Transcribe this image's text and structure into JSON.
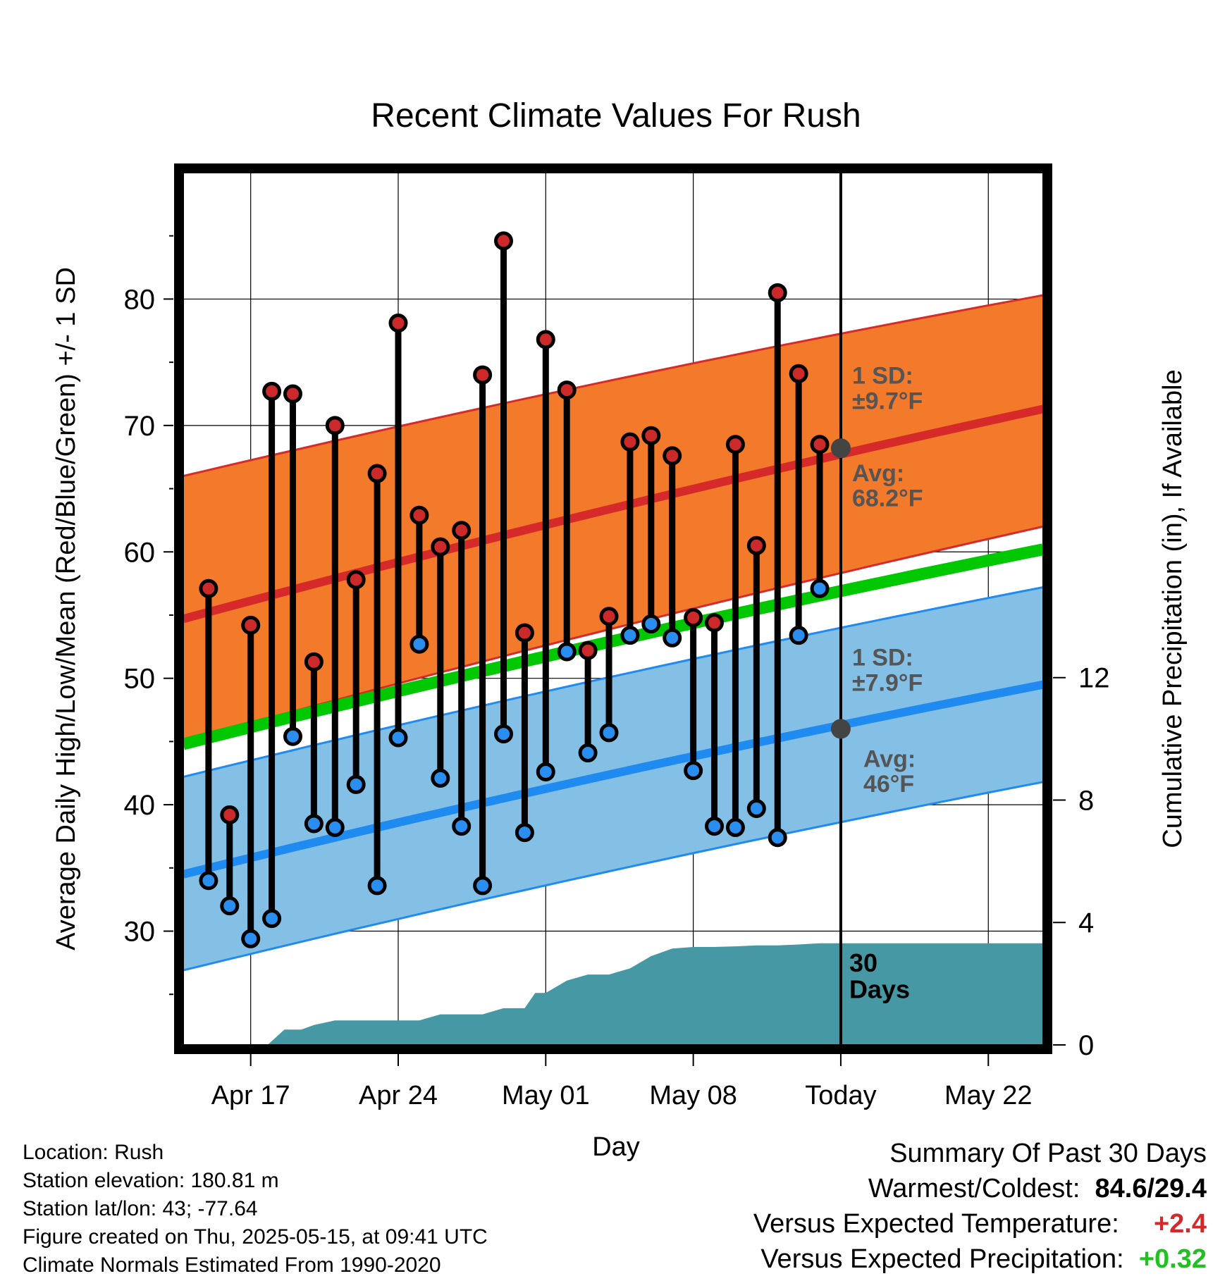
{
  "chart_data": {
    "type": "line",
    "title": "Recent Climate Values For Rush",
    "xlabel": "Day",
    "ylabel": "Average Daily High/Low/Mean (Red/Blue/Green) +/- 1 SD",
    "y2label": "Cumulative Precipitation (in), If Available",
    "x_tick_labels": [
      "Apr 17",
      "Apr 24",
      "May 01",
      "May 08",
      "Today",
      "May 22"
    ],
    "x_tick_days": [
      -28,
      -21,
      -14,
      -7,
      0,
      7
    ],
    "xlim_days": [
      -31.2,
      9.6
    ],
    "ylim": [
      21,
      90
    ],
    "y_ticks": [
      30,
      40,
      50,
      60,
      70,
      80
    ],
    "y2lim": [
      0,
      28.5
    ],
    "y2_ticks": [
      0,
      4,
      8,
      12
    ],
    "grid": true,
    "colors": {
      "high_band": "#f3792b",
      "high_band_edge": "#d42b2b",
      "high_mean": "#d62a2a",
      "low_band": "#84c0e6",
      "low_band_edge": "#1f8bf0",
      "low_mean": "#1f8bf0",
      "mean": "#00c800",
      "precip": "#4698a4",
      "high_point": "#cc2a2a",
      "low_point": "#2a8ef0",
      "avg_marker": "#444444",
      "annotation": "#555555"
    },
    "normals": {
      "days": [
        -31.2,
        9.6
      ],
      "high_mean": [
        54.7,
        71.3
      ],
      "high_sd_upper": [
        66.0,
        80.3
      ],
      "high_sd_lower": [
        45.0,
        62.0
      ],
      "low_mean": [
        34.5,
        49.5
      ],
      "low_sd_upper": [
        42.2,
        57.2
      ],
      "low_sd_lower": [
        26.9,
        41.8
      ],
      "mean_start": 44.8,
      "mean_end": 60.2
    },
    "observed": {
      "days": [
        -30,
        -29,
        -28,
        -27,
        -26,
        -25,
        -24,
        -23,
        -22,
        -21,
        -20,
        -19,
        -18,
        -17,
        -16,
        -15,
        -14,
        -13,
        -12,
        -11,
        -10,
        -9,
        -8,
        -7,
        -6,
        -5,
        -4,
        -3,
        -2,
        -1
      ],
      "highs": [
        57.1,
        39.2,
        54.2,
        72.7,
        72.5,
        51.3,
        70.0,
        57.8,
        66.2,
        78.1,
        62.9,
        60.4,
        61.7,
        74.0,
        84.6,
        53.6,
        76.8,
        72.8,
        52.2,
        54.9,
        68.7,
        69.2,
        67.6,
        54.8,
        54.4,
        68.5,
        60.5,
        80.5,
        74.1,
        68.5
      ],
      "lows": [
        34.0,
        32.0,
        29.4,
        31.0,
        45.4,
        38.5,
        38.2,
        41.6,
        33.6,
        45.3,
        52.7,
        42.1,
        38.3,
        33.6,
        45.6,
        37.8,
        42.6,
        52.1,
        44.1,
        45.7,
        53.4,
        54.3,
        53.2,
        42.7,
        38.3,
        38.2,
        39.7,
        37.4,
        53.4,
        57.1
      ]
    },
    "precip_cumulative": {
      "days": [
        -31.2,
        -27.2,
        -26.4,
        -25.6,
        -25.0,
        -24.0,
        -22.0,
        -21.0,
        -20.0,
        -19.0,
        -17.0,
        -16.0,
        -15.0,
        -14.5,
        -14.0,
        -13.0,
        -12.0,
        -11.0,
        -10.0,
        -9.0,
        -8.0,
        -7.0,
        -6.0,
        -5.0,
        -4.0,
        -3.0,
        -2.0,
        -1.0,
        0,
        9.6
      ],
      "values": [
        0,
        0,
        0.5,
        0.5,
        0.65,
        0.8,
        0.8,
        0.8,
        0.8,
        1.0,
        1.0,
        1.2,
        1.2,
        1.7,
        1.7,
        2.1,
        2.3,
        2.3,
        2.5,
        2.9,
        3.15,
        3.2,
        3.2,
        3.22,
        3.25,
        3.25,
        3.28,
        3.32,
        3.32,
        3.32
      ]
    },
    "today_marker": {
      "label": "30\nDays",
      "high_sd_label": "1 SD:\n±9.7°F",
      "high_avg_label": "Avg:\n68.2°F",
      "high_avg_value": 68.2,
      "low_sd_label": "1 SD:\n±7.9°F",
      "low_avg_label": "Avg:\n46°F",
      "low_avg_value": 46
    }
  },
  "footer": {
    "location": "Location: Rush",
    "elevation": "Station elevation: 180.81 m",
    "latlon": "Station lat/lon: 43; -77.64",
    "created": "Figure created on Thu, 2025-05-15, at 09:41 UTC",
    "normals": "Climate Normals Estimated From 1990-2020"
  },
  "summary": {
    "title": "Summary Of Past 30 Days",
    "warmest_label": "Warmest/Coldest:",
    "warmest_value": "84.6/29.4",
    "temp_label": "Versus Expected Temperature:",
    "temp_value": "+2.4",
    "precip_label": "Versus Expected Precipitation:",
    "precip_value": "+0.32"
  }
}
